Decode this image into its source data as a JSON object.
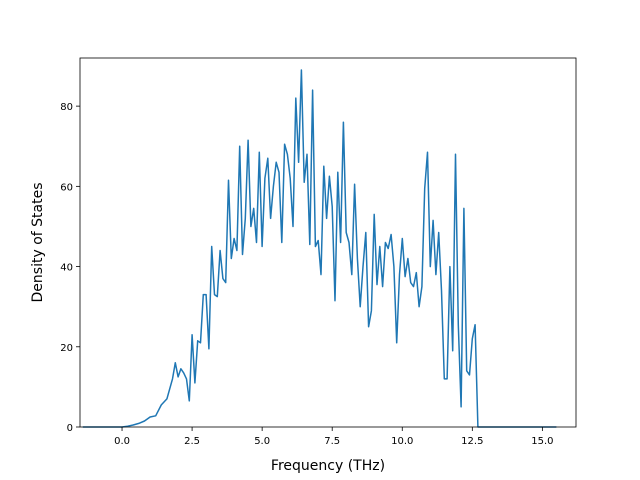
{
  "chart_data": {
    "type": "line",
    "title": "",
    "xlabel": "Frequency (THz)",
    "ylabel": "Density of States",
    "xlim": [
      -1.5,
      16.2
    ],
    "ylim": [
      0,
      92
    ],
    "grid": false,
    "line_color": "#1f77b4",
    "x_ticks": [
      0.0,
      2.5,
      5.0,
      7.5,
      10.0,
      12.5,
      15.0
    ],
    "x_tick_labels": [
      "0.0",
      "2.5",
      "5.0",
      "7.5",
      "10.0",
      "12.5",
      "15.0"
    ],
    "y_ticks": [
      0,
      20,
      40,
      60,
      80
    ],
    "y_tick_labels": [
      "0",
      "20",
      "40",
      "60",
      "80"
    ],
    "series": [
      {
        "x": [
          -1.4,
          -0.5,
          0.0,
          0.2,
          0.4,
          0.6,
          0.8,
          1.0,
          1.2,
          1.4,
          1.6,
          1.8,
          1.9,
          2.0,
          2.1,
          2.2,
          2.3,
          2.4,
          2.5,
          2.6,
          2.7,
          2.8,
          2.9,
          3.0,
          3.1,
          3.2,
          3.3,
          3.4,
          3.5,
          3.6,
          3.7,
          3.8,
          3.9,
          4.0,
          4.1,
          4.2,
          4.3,
          4.4,
          4.5,
          4.6,
          4.7,
          4.8,
          4.9,
          5.0,
          5.1,
          5.2,
          5.3,
          5.4,
          5.5,
          5.6,
          5.7,
          5.8,
          5.9,
          6.0,
          6.1,
          6.2,
          6.3,
          6.4,
          6.5,
          6.6,
          6.7,
          6.8,
          6.9,
          7.0,
          7.1,
          7.2,
          7.3,
          7.4,
          7.5,
          7.6,
          7.7,
          7.8,
          7.9,
          8.0,
          8.1,
          8.2,
          8.3,
          8.4,
          8.5,
          8.6,
          8.7,
          8.8,
          8.9,
          9.0,
          9.1,
          9.2,
          9.3,
          9.4,
          9.5,
          9.6,
          9.7,
          9.8,
          9.9,
          10.0,
          10.1,
          10.2,
          10.3,
          10.4,
          10.5,
          10.6,
          10.7,
          10.8,
          10.9,
          11.0,
          11.1,
          11.2,
          11.3,
          11.4,
          11.5,
          11.6,
          11.7,
          11.8,
          11.9,
          12.0,
          12.1,
          12.2,
          12.3,
          12.4,
          12.5,
          12.6,
          12.7,
          13.5,
          15.5
        ],
        "y": [
          0,
          0,
          0,
          0.2,
          0.5,
          0.9,
          1.5,
          2.5,
          2.8,
          5.5,
          7.0,
          12.0,
          16.0,
          12.5,
          14.5,
          13.5,
          12.0,
          6.5,
          23.0,
          11.0,
          21.5,
          21.0,
          33.0,
          33.0,
          19.5,
          45.0,
          33.0,
          32.5,
          44.0,
          37.0,
          36.0,
          61.5,
          42.0,
          47.0,
          44.0,
          70.0,
          43.0,
          52.0,
          71.5,
          50.0,
          54.5,
          46.0,
          68.5,
          45.0,
          62.0,
          67.0,
          52.0,
          60.0,
          66.0,
          63.5,
          46.0,
          70.5,
          68.0,
          62.0,
          50.0,
          82.0,
          66.0,
          89.0,
          61.0,
          68.0,
          45.5,
          84.0,
          45.0,
          46.5,
          38.0,
          65.0,
          52.0,
          62.5,
          55.0,
          31.5,
          63.5,
          46.0,
          76.0,
          48.5,
          46.0,
          38.0,
          60.5,
          42.0,
          30.0,
          40.0,
          48.5,
          25.0,
          29.0,
          53.0,
          35.5,
          45.0,
          35.0,
          46.0,
          44.5,
          48.0,
          40.0,
          21.0,
          38.0,
          47.0,
          37.5,
          42.0,
          36.0,
          35.0,
          38.5,
          30.0,
          35.0,
          59.5,
          68.5,
          40.0,
          51.5,
          38.0,
          48.5,
          34.0,
          12.0,
          12.0,
          40.0,
          19.0,
          68.0,
          25.5,
          5.0,
          54.5,
          14.0,
          13.0,
          22.0,
          25.5,
          0,
          0,
          0
        ]
      }
    ]
  }
}
